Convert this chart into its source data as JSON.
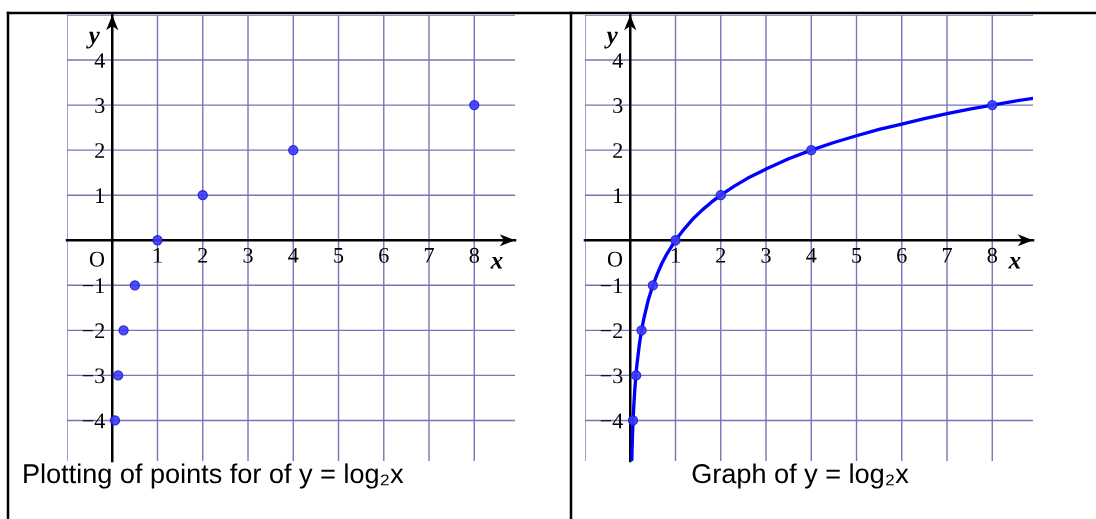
{
  "chart_data": [
    {
      "type": "scatter",
      "title": "Plotting of points for of y = log₂x",
      "xlabel": "x",
      "ylabel": "y",
      "marker": "circle",
      "grid": true,
      "xlim": [
        -1,
        8.9
      ],
      "ylim": [
        -4.9,
        5
      ],
      "xticks": [
        {
          "value": -1,
          "label": null
        },
        1,
        2,
        3,
        4,
        5,
        6,
        7,
        8
      ],
      "yticks": [
        {
          "value": -4,
          "label": "−4"
        },
        {
          "value": -3,
          "label": "−3"
        },
        {
          "value": -2,
          "label": "−2"
        },
        {
          "value": -1,
          "label": "−1"
        },
        1,
        2,
        3,
        4,
        {
          "value": 5,
          "label": null
        }
      ],
      "annotations": [
        "O"
      ],
      "series": [
        {
          "color": "#3a3aff",
          "x": [
            0.06,
            0.13,
            0.25,
            0.5,
            1,
            2,
            4,
            8
          ],
          "values": [
            -4,
            -3,
            -2,
            -1,
            0,
            1,
            2,
            3
          ]
        }
      ]
    },
    {
      "type": "line",
      "title": "Graph of y = log₂x",
      "xlabel": "x",
      "ylabel": "y",
      "marker": "circle",
      "grid": true,
      "xlim": [
        -1,
        8.9
      ],
      "ylim": [
        -4.9,
        5
      ],
      "xticks": [
        {
          "value": -1,
          "label": null
        },
        1,
        2,
        3,
        4,
        5,
        6,
        7,
        8
      ],
      "yticks": [
        {
          "value": -4,
          "label": "−4"
        },
        {
          "value": -3,
          "label": "−3"
        },
        {
          "value": -2,
          "label": "−2"
        },
        {
          "value": -1,
          "label": "−1"
        },
        1,
        2,
        3,
        4,
        {
          "value": 5,
          "label": null
        }
      ],
      "annotations": [
        "O"
      ],
      "series": [
        {
          "type": "line",
          "marker": "none",
          "color": "#0000ff",
          "x": [
            0.034,
            0.04,
            0.05,
            0.0625,
            0.08,
            0.1,
            0.125,
            0.15,
            0.2,
            0.25,
            0.3,
            0.4,
            0.5,
            0.6,
            0.7,
            0.8,
            1,
            1.2,
            1.4,
            1.6,
            1.8,
            2,
            2.3,
            2.6,
            3,
            3.5,
            4,
            4.5,
            5,
            5.5,
            6,
            6.5,
            7,
            7.5,
            8,
            8.5,
            8.9
          ],
          "values": [
            -4.88,
            -4.64,
            -4.32,
            -4,
            -3.64,
            -3.32,
            -3,
            -2.74,
            -2.32,
            -2,
            -1.74,
            -1.32,
            -1,
            -0.74,
            -0.51,
            -0.32,
            0,
            0.26,
            0.49,
            0.68,
            0.85,
            1,
            1.2,
            1.38,
            1.58,
            1.81,
            2,
            2.17,
            2.32,
            2.46,
            2.58,
            2.7,
            2.81,
            2.91,
            3,
            3.09,
            3.15
          ]
        },
        {
          "type": "scatter",
          "color": "#3a3aff",
          "x": [
            0.06,
            0.13,
            0.25,
            0.5,
            1,
            2,
            4,
            8
          ],
          "values": [
            -4,
            -3,
            -2,
            -1,
            0,
            1,
            2,
            3
          ]
        }
      ]
    }
  ]
}
